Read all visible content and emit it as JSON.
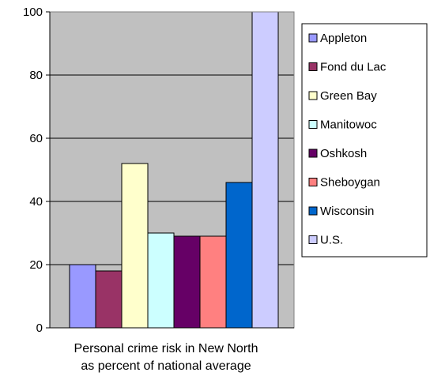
{
  "chart_data": {
    "type": "bar",
    "xlabel": [
      "Personal crime risk in New North",
      "as percent of national average"
    ],
    "ylabel": "",
    "ylim": [
      0,
      100
    ],
    "yticks": [
      0,
      20,
      40,
      60,
      80,
      100
    ],
    "grid": true,
    "legend_position": "right",
    "series": [
      {
        "name": "Appleton",
        "value": 20,
        "color": "#9999ff"
      },
      {
        "name": "Fond du Lac",
        "value": 18,
        "color": "#993366"
      },
      {
        "name": "Green Bay",
        "value": 52,
        "color": "#ffffcc"
      },
      {
        "name": "Manitowoc",
        "value": 30,
        "color": "#ccffff"
      },
      {
        "name": "Oshkosh",
        "value": 29,
        "color": "#660066"
      },
      {
        "name": "Sheboygan",
        "value": 29,
        "color": "#ff8080"
      },
      {
        "name": "Wisconsin",
        "value": 46,
        "color": "#0066cc"
      },
      {
        "name": "U.S.",
        "value": 100,
        "color": "#ccccff"
      }
    ],
    "plot_background": "#c0c0c0"
  }
}
